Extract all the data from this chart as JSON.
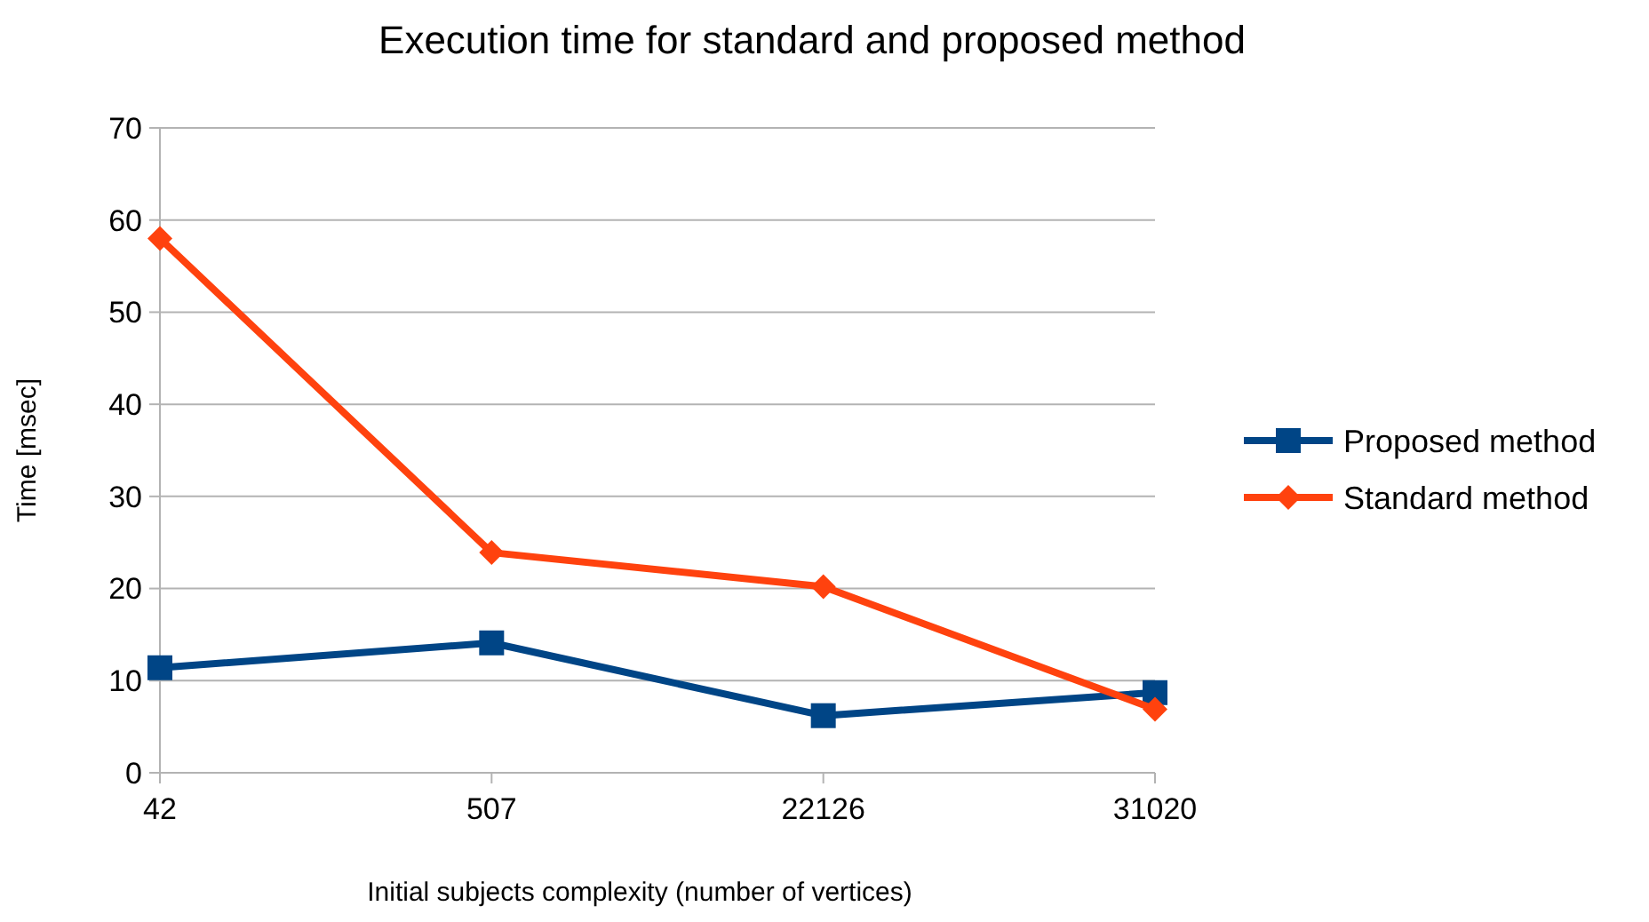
{
  "chart_data": {
    "type": "line",
    "title": "Execution time for standard and proposed method",
    "xlabel": "Initial subjects complexity (number of vertices)",
    "ylabel": "Time [msec]",
    "categories": [
      "42",
      "507",
      "22126",
      "31020"
    ],
    "series": [
      {
        "name": "Proposed method",
        "color": "#004586",
        "marker": "square",
        "values": [
          11.4,
          14.1,
          6.2,
          8.7
        ]
      },
      {
        "name": "Standard method",
        "color": "#ff420e",
        "marker": "diamond",
        "values": [
          58,
          23.9,
          20.2,
          6.9
        ]
      }
    ],
    "ylim": [
      0,
      70
    ],
    "yticks": [
      0,
      10,
      20,
      30,
      40,
      50,
      60,
      70
    ],
    "grid": "y",
    "legend": "right",
    "line_style": "solid"
  }
}
